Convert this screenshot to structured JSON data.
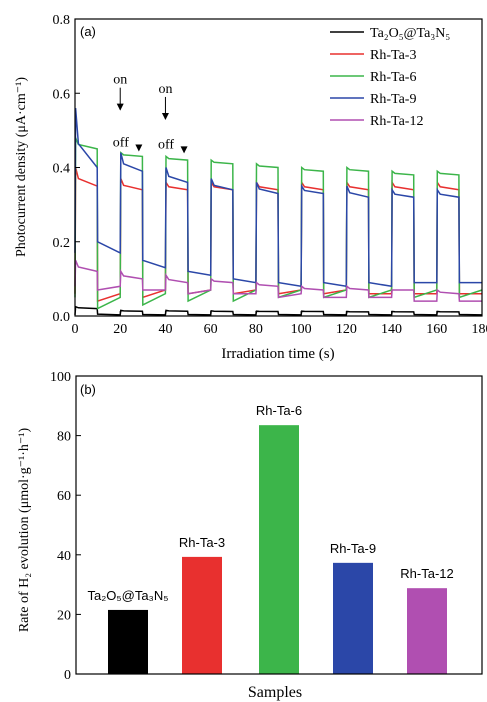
{
  "chart_data": [
    {
      "panel": "(a)",
      "type": "line",
      "xlabel": "Irradiation time (s)",
      "ylabel": "Photocurrent density (μA·cm⁻¹)",
      "xlim": [
        0,
        180
      ],
      "ylim": [
        0,
        0.8
      ],
      "xticks": [
        0,
        20,
        40,
        60,
        80,
        100,
        120,
        140,
        160,
        180
      ],
      "yticks": [
        0.0,
        0.2,
        0.4,
        0.6,
        0.8
      ],
      "on_off": {
        "period_s": 10,
        "first_on_s": 0,
        "last_off_s": 170
      },
      "legend_position": "top-right",
      "annotations": [
        {
          "text": "on",
          "x": 20,
          "y": 0.545
        },
        {
          "text": "off",
          "x": 30,
          "y": 0.435
        },
        {
          "text": "on",
          "x": 40,
          "y": 0.52
        },
        {
          "text": "off",
          "x": 50,
          "y": 0.43
        }
      ],
      "series": [
        {
          "name": "Ta₂O₅@Ta₃N₅",
          "color": "#000000",
          "on_start": [
            0.025,
            0.015,
            0.015,
            0.014,
            0.013,
            0.013,
            0.012,
            0.012,
            0.012
          ],
          "on_end": [
            0.02,
            0.013,
            0.013,
            0.012,
            0.012,
            0.012,
            0.011,
            0.011,
            0.011
          ],
          "off_start": [
            0.005,
            0.004,
            0.004,
            0.004,
            0.004,
            0.004,
            0.004,
            0.004,
            0.004
          ],
          "off_end": [
            0.003,
            0.003,
            0.003,
            0.003,
            0.003,
            0.003,
            0.003,
            0.003,
            0.003
          ]
        },
        {
          "name": "Rh-Ta-3",
          "color": "#e8302f",
          "on_start": [
            0.4,
            0.37,
            0.36,
            0.36,
            0.36,
            0.36,
            0.36,
            0.36,
            0.36
          ],
          "on_end": [
            0.35,
            0.34,
            0.34,
            0.34,
            0.34,
            0.34,
            0.34,
            0.34,
            0.34
          ],
          "off_start": [
            0.04,
            0.05,
            0.06,
            0.06,
            0.06,
            0.06,
            0.06,
            0.06,
            0.06
          ],
          "off_end": [
            0.06,
            0.07,
            0.07,
            0.07,
            0.07,
            0.07,
            0.06,
            0.06,
            0.06
          ]
        },
        {
          "name": "Rh-Ta-6",
          "color": "#3cb54a",
          "on_start": [
            0.48,
            0.44,
            0.43,
            0.42,
            0.41,
            0.4,
            0.4,
            0.39,
            0.39
          ],
          "on_end": [
            0.45,
            0.43,
            0.42,
            0.41,
            0.4,
            0.39,
            0.39,
            0.38,
            0.38
          ],
          "off_start": [
            0.02,
            0.03,
            0.04,
            0.04,
            0.05,
            0.05,
            0.05,
            0.05,
            0.05
          ],
          "off_end": [
            0.05,
            0.06,
            0.07,
            0.07,
            0.07,
            0.07,
            0.07,
            0.07,
            0.07
          ]
        },
        {
          "name": "Rh-Ta-9",
          "color": "#2b47a8",
          "on_start": [
            0.56,
            0.44,
            0.4,
            0.37,
            0.36,
            0.35,
            0.35,
            0.34,
            0.34
          ],
          "on_end": [
            0.4,
            0.39,
            0.36,
            0.34,
            0.33,
            0.33,
            0.32,
            0.32,
            0.32
          ],
          "off_start": [
            0.2,
            0.15,
            0.12,
            0.1,
            0.09,
            0.09,
            0.09,
            0.09,
            0.09
          ],
          "off_end": [
            0.17,
            0.13,
            0.11,
            0.09,
            0.08,
            0.08,
            0.08,
            0.09,
            0.09
          ]
        },
        {
          "name": "Rh-Ta-12",
          "color": "#b04fb1",
          "on_start": [
            0.15,
            0.12,
            0.11,
            0.1,
            0.09,
            0.08,
            0.08,
            0.07,
            0.07
          ],
          "on_end": [
            0.12,
            0.1,
            0.09,
            0.09,
            0.08,
            0.07,
            0.07,
            0.07,
            0.06
          ],
          "off_start": [
            0.07,
            0.07,
            0.06,
            0.06,
            0.05,
            0.05,
            0.05,
            0.04,
            0.04
          ],
          "off_end": [
            0.08,
            0.07,
            0.07,
            0.06,
            0.06,
            0.05,
            0.05,
            0.04,
            0.04
          ]
        }
      ]
    },
    {
      "panel": "(b)",
      "type": "bar",
      "xlabel": "Samples",
      "ylabel": "Rate of H₂ evolution (μmol·g⁻¹·h⁻¹)",
      "ylim": [
        0,
        100
      ],
      "yticks": [
        0,
        20,
        40,
        60,
        80,
        100
      ],
      "categories": [
        "Ta₂O₅@Ta₃N₅",
        "Rh-Ta-3",
        "Rh-Ta-6",
        "Rh-Ta-9",
        "Rh-Ta-12"
      ],
      "values": [
        21.5,
        39.3,
        83.5,
        37.3,
        28.8
      ],
      "colors": [
        "#000000",
        "#e8302f",
        "#3cb54a",
        "#2b47a8",
        "#b04fb1"
      ]
    }
  ]
}
